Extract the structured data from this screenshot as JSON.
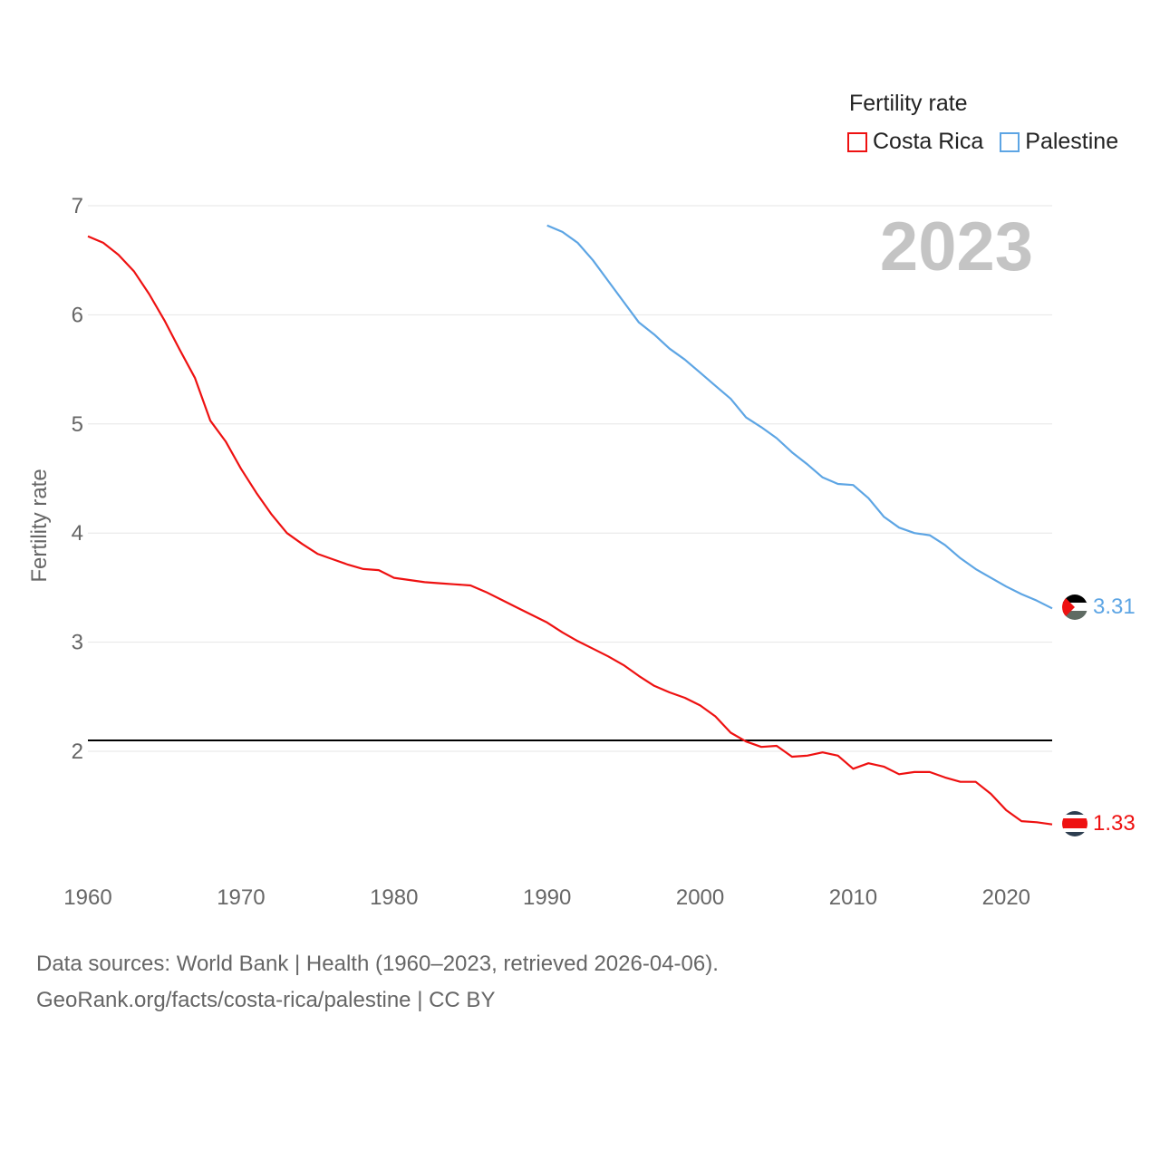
{
  "legend": {
    "title": "Fertility rate",
    "items": [
      {
        "label": "Costa Rica",
        "color": "#ee1111"
      },
      {
        "label": "Palestine",
        "color": "#5da5e4"
      }
    ]
  },
  "sources": {
    "line1": "Data sources: World Bank | Health (1960–2023, retrieved 2026-04-06).",
    "line2": "GeoRank.org/facts/costa-rica/palestine | CC BY"
  },
  "chart_data": {
    "type": "line",
    "ylabel": "Fertility rate",
    "xlabel": "",
    "year_label": "2023",
    "xlim": [
      1960,
      2023
    ],
    "ylim": [
      1,
      7
    ],
    "x_ticks": [
      1960,
      1970,
      1980,
      1990,
      2000,
      2010,
      2020
    ],
    "y_ticks": [
      2,
      3,
      4,
      5,
      6,
      7
    ],
    "reference_line": {
      "value": 2.1,
      "color": "#000000"
    },
    "series": [
      {
        "name": "Costa Rica",
        "color": "#ee1111",
        "end_label": "1.33",
        "x": [
          1960,
          1961,
          1962,
          1963,
          1964,
          1965,
          1966,
          1967,
          1968,
          1969,
          1970,
          1971,
          1972,
          1973,
          1974,
          1975,
          1976,
          1977,
          1978,
          1979,
          1980,
          1981,
          1982,
          1983,
          1984,
          1985,
          1986,
          1987,
          1988,
          1989,
          1990,
          1991,
          1992,
          1993,
          1994,
          1995,
          1996,
          1997,
          1998,
          1999,
          2000,
          2001,
          2002,
          2003,
          2004,
          2005,
          2006,
          2007,
          2008,
          2009,
          2010,
          2011,
          2012,
          2013,
          2014,
          2015,
          2016,
          2017,
          2018,
          2019,
          2020,
          2021,
          2022,
          2023
        ],
        "values": [
          6.72,
          6.66,
          6.55,
          6.4,
          6.19,
          5.95,
          5.68,
          5.42,
          5.03,
          4.84,
          4.59,
          4.37,
          4.17,
          4.0,
          3.9,
          3.81,
          3.76,
          3.71,
          3.67,
          3.66,
          3.59,
          3.57,
          3.55,
          3.54,
          3.53,
          3.52,
          3.46,
          3.39,
          3.32,
          3.25,
          3.18,
          3.09,
          3.01,
          2.94,
          2.87,
          2.79,
          2.69,
          2.6,
          2.54,
          2.49,
          2.42,
          2.32,
          2.17,
          2.09,
          2.04,
          2.05,
          1.95,
          1.96,
          1.99,
          1.96,
          1.84,
          1.89,
          1.86,
          1.79,
          1.81,
          1.81,
          1.76,
          1.72,
          1.72,
          1.61,
          1.46,
          1.36,
          1.35,
          1.33
        ]
      },
      {
        "name": "Palestine",
        "color": "#5da5e4",
        "end_label": "3.31",
        "x": [
          1990,
          1991,
          1992,
          1993,
          1994,
          1995,
          1996,
          1997,
          1998,
          1999,
          2000,
          2001,
          2002,
          2003,
          2004,
          2005,
          2006,
          2007,
          2008,
          2009,
          2010,
          2011,
          2012,
          2013,
          2014,
          2015,
          2016,
          2017,
          2018,
          2019,
          2020,
          2021,
          2022,
          2023
        ],
        "values": [
          6.82,
          6.76,
          6.66,
          6.5,
          6.31,
          6.12,
          5.93,
          5.82,
          5.69,
          5.59,
          5.47,
          5.35,
          5.23,
          5.06,
          4.97,
          4.87,
          4.74,
          4.63,
          4.51,
          4.45,
          4.44,
          4.32,
          4.15,
          4.05,
          4.0,
          3.98,
          3.89,
          3.77,
          3.67,
          3.59,
          3.51,
          3.44,
          3.38,
          3.31
        ]
      }
    ]
  }
}
